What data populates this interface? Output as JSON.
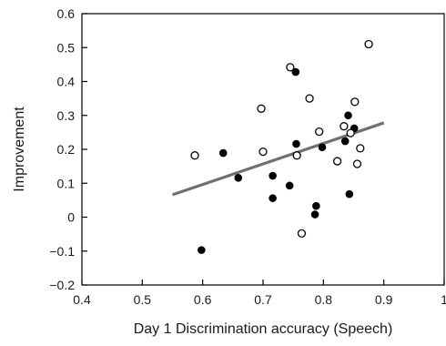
{
  "chart_data": {
    "type": "scatter",
    "title": "",
    "xlabel": "Day 1 Discrimination accuracy (Speech)",
    "ylabel": "Improvement",
    "xlim": [
      0.4,
      1.0
    ],
    "ylim": [
      -0.2,
      0.6
    ],
    "xticks": [
      "0.4",
      "0.5",
      "0.6",
      "0.7",
      "0.8",
      "0.9",
      "1"
    ],
    "yticks": [
      "−0.2",
      "−0.1",
      "0",
      "0.1",
      "0.2",
      "0.3",
      "0.4",
      "0.5",
      "0.6"
    ],
    "grid": false,
    "legend": "none",
    "series": [
      {
        "marker": "filled-circle",
        "color": "#000000",
        "points": [
          {
            "x": 0.598,
            "y": -0.097
          },
          {
            "x": 0.634,
            "y": 0.189
          },
          {
            "x": 0.659,
            "y": 0.116
          },
          {
            "x": 0.716,
            "y": 0.122
          },
          {
            "x": 0.716,
            "y": 0.056
          },
          {
            "x": 0.744,
            "y": 0.093
          },
          {
            "x": 0.754,
            "y": 0.428
          },
          {
            "x": 0.755,
            "y": 0.216
          },
          {
            "x": 0.786,
            "y": 0.008
          },
          {
            "x": 0.788,
            "y": 0.033
          },
          {
            "x": 0.798,
            "y": 0.206
          },
          {
            "x": 0.836,
            "y": 0.224
          },
          {
            "x": 0.841,
            "y": 0.3
          },
          {
            "x": 0.843,
            "y": 0.068
          },
          {
            "x": 0.851,
            "y": 0.262
          }
        ]
      },
      {
        "marker": "open-circle",
        "color": "#000000",
        "points": [
          {
            "x": 0.587,
            "y": 0.182
          },
          {
            "x": 0.697,
            "y": 0.32
          },
          {
            "x": 0.7,
            "y": 0.193
          },
          {
            "x": 0.745,
            "y": 0.442
          },
          {
            "x": 0.756,
            "y": 0.182
          },
          {
            "x": 0.764,
            "y": -0.048
          },
          {
            "x": 0.777,
            "y": 0.35
          },
          {
            "x": 0.793,
            "y": 0.252
          },
          {
            "x": 0.823,
            "y": 0.165
          },
          {
            "x": 0.834,
            "y": 0.268
          },
          {
            "x": 0.845,
            "y": 0.248
          },
          {
            "x": 0.852,
            "y": 0.34
          },
          {
            "x": 0.856,
            "y": 0.157
          },
          {
            "x": 0.861,
            "y": 0.203
          },
          {
            "x": 0.875,
            "y": 0.51
          }
        ]
      }
    ],
    "fit_line": {
      "color": "#707070",
      "from": {
        "x": 0.55,
        "y": 0.066
      },
      "to": {
        "x": 0.9,
        "y": 0.278
      }
    }
  }
}
